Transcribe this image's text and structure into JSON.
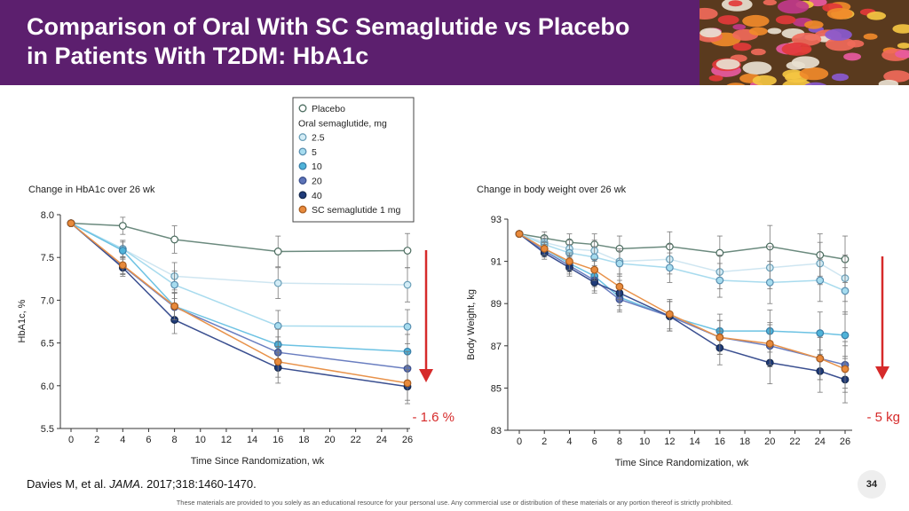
{
  "slide": {
    "title_line1": "Comparison of Oral With SC Semaglutide vs Placebo",
    "title_line2": "in Patients With T2DM: HbA1c",
    "citation_authors": "Davies M, et al.",
    "citation_journal": "JAMA",
    "citation_rest": ". 2017;318:1460-1470.",
    "page_number": "34",
    "footer": "These materials are provided to you solely as an educational resource for your personal use. Any commercial use or distribution of these materials or any portion thereof is strictly prohibited."
  },
  "legend": {
    "items": [
      {
        "label": "Placebo",
        "color": "#ffffff",
        "stroke": "#4a6b5e"
      },
      {
        "label": "Oral semaglutide, mg",
        "color": null,
        "stroke": null
      },
      {
        "label": "2.5",
        "color": "#d3ecf6",
        "stroke": "#6a9fb8"
      },
      {
        "label": "5",
        "color": "#a6dcef",
        "stroke": "#5a8fb0"
      },
      {
        "label": "10",
        "color": "#4fb3d9",
        "stroke": "#3a7fa8"
      },
      {
        "label": "20",
        "color": "#5d74b8",
        "stroke": "#3a4e8c"
      },
      {
        "label": "40",
        "color": "#1f3b7a",
        "stroke": "#15294f"
      },
      {
        "label": "SC semaglutide 1 mg",
        "color": "#e88a3c",
        "stroke": "#a85d20"
      }
    ]
  },
  "chart_data": [
    {
      "type": "line",
      "title": "Change in HbA1c over 26 wk",
      "xlabel": "Time Since Randomization, wk",
      "ylabel": "HbA1c, %",
      "xlim": [
        0,
        26
      ],
      "ylim": [
        5.5,
        8.0
      ],
      "xticks": [
        0,
        2,
        4,
        6,
        8,
        10,
        12,
        14,
        16,
        18,
        20,
        22,
        24,
        26
      ],
      "yticks": [
        "8.0",
        "7.5",
        "7.0",
        "6.5",
        "6.0",
        "5.5"
      ],
      "x": [
        0,
        4,
        8,
        16,
        26
      ],
      "annotation": "- 1.6 %",
      "series": [
        {
          "name": "Placebo",
          "values": [
            7.9,
            7.87,
            7.71,
            7.57,
            7.58
          ],
          "err": [
            0.02,
            0.1,
            0.16,
            0.18,
            0.2
          ]
        },
        {
          "name": "2.5",
          "values": [
            7.9,
            7.6,
            7.28,
            7.2,
            7.18
          ],
          "err": [
            0.02,
            0.1,
            0.16,
            0.18,
            0.2
          ]
        },
        {
          "name": "5",
          "values": [
            7.9,
            7.6,
            7.18,
            6.7,
            6.69
          ],
          "err": [
            0.02,
            0.1,
            0.16,
            0.18,
            0.2
          ]
        },
        {
          "name": "10",
          "values": [
            7.9,
            7.58,
            6.93,
            6.48,
            6.4
          ],
          "err": [
            0.02,
            0.1,
            0.16,
            0.18,
            0.2
          ]
        },
        {
          "name": "20",
          "values": [
            7.9,
            7.4,
            6.92,
            6.39,
            6.2
          ],
          "err": [
            0.02,
            0.1,
            0.16,
            0.18,
            0.2
          ]
        },
        {
          "name": "40",
          "values": [
            7.9,
            7.38,
            6.77,
            6.21,
            5.99
          ],
          "err": [
            0.02,
            0.1,
            0.16,
            0.18,
            0.2
          ]
        },
        {
          "name": "SC semaglutide 1 mg",
          "values": [
            7.9,
            7.41,
            6.93,
            6.28,
            6.03
          ],
          "err": [
            0.02,
            0.1,
            0.16,
            0.18,
            0.2
          ]
        }
      ]
    },
    {
      "type": "line",
      "title": "Change in body weight over 26 wk",
      "xlabel": "Time Since Randomization, wk",
      "ylabel": "Body Weight, kg",
      "xlim": [
        0,
        26
      ],
      "ylim": [
        83,
        93
      ],
      "xticks": [
        0,
        2,
        4,
        6,
        8,
        10,
        12,
        14,
        16,
        18,
        20,
        22,
        24,
        26
      ],
      "yticks": [
        "93",
        "91",
        "89",
        "87",
        "85",
        "83"
      ],
      "x": [
        0,
        2,
        4,
        6,
        8,
        12,
        16,
        20,
        24,
        26
      ],
      "annotation": "- 5 kg",
      "series": [
        {
          "name": "Placebo",
          "values": [
            92.3,
            92.1,
            91.9,
            91.8,
            91.6,
            91.7,
            91.4,
            91.7,
            91.3,
            91.1
          ],
          "err": [
            0.1,
            0.3,
            0.4,
            0.5,
            0.6,
            0.7,
            0.8,
            1.0,
            1.0,
            1.1
          ]
        },
        {
          "name": "2.5",
          "values": [
            92.3,
            91.9,
            91.6,
            91.5,
            91.0,
            91.1,
            90.5,
            90.7,
            90.9,
            90.2
          ],
          "err": [
            0.1,
            0.3,
            0.4,
            0.5,
            0.6,
            0.7,
            0.8,
            1.0,
            1.0,
            1.1
          ]
        },
        {
          "name": "5",
          "values": [
            92.3,
            91.8,
            91.4,
            91.2,
            90.9,
            90.7,
            90.1,
            90.0,
            90.1,
            89.6
          ],
          "err": [
            0.1,
            0.3,
            0.4,
            0.5,
            0.6,
            0.7,
            0.8,
            1.0,
            1.0,
            1.1
          ]
        },
        {
          "name": "10",
          "values": [
            92.3,
            91.6,
            90.9,
            90.3,
            89.3,
            88.4,
            87.7,
            87.7,
            87.6,
            87.5
          ],
          "err": [
            0.1,
            0.3,
            0.4,
            0.5,
            0.6,
            0.7,
            0.8,
            1.0,
            1.0,
            1.1
          ]
        },
        {
          "name": "20",
          "values": [
            92.3,
            91.5,
            90.8,
            90.1,
            89.2,
            88.4,
            87.4,
            87.0,
            86.4,
            86.1
          ],
          "err": [
            0.1,
            0.3,
            0.4,
            0.5,
            0.6,
            0.7,
            0.8,
            1.0,
            1.0,
            1.1
          ]
        },
        {
          "name": "40",
          "values": [
            92.3,
            91.4,
            90.7,
            90.0,
            89.5,
            88.4,
            86.9,
            86.2,
            85.8,
            85.4
          ],
          "err": [
            0.1,
            0.3,
            0.4,
            0.5,
            0.6,
            0.7,
            0.8,
            1.0,
            1.0,
            1.1
          ]
        },
        {
          "name": "SC semaglutide 1 mg",
          "values": [
            92.3,
            91.6,
            91.0,
            90.6,
            89.8,
            88.5,
            87.4,
            87.1,
            86.4,
            85.9
          ],
          "err": [
            0.1,
            0.3,
            0.4,
            0.5,
            0.6,
            0.7,
            0.8,
            1.0,
            1.0,
            1.1
          ]
        }
      ]
    }
  ]
}
